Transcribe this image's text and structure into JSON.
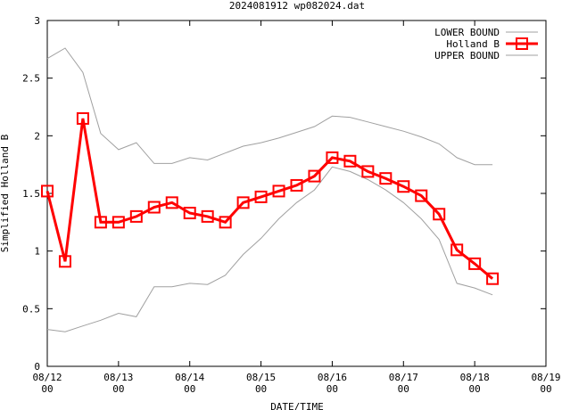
{
  "chart_data": {
    "type": "line",
    "title": "2024081912 wp082024.dat",
    "xlabel": "DATE/TIME",
    "ylabel": "Simplified Holland B",
    "ylim": [
      0,
      3
    ],
    "yticks": [
      "0",
      "0.5",
      "1",
      "1.5",
      "2",
      "2.5",
      "3"
    ],
    "xlim_days": [
      0,
      7
    ],
    "xticks": [
      {
        "top": "08/12",
        "bottom": "00"
      },
      {
        "top": "08/13",
        "bottom": "00"
      },
      {
        "top": "08/14",
        "bottom": "00"
      },
      {
        "top": "08/15",
        "bottom": "00"
      },
      {
        "top": "08/16",
        "bottom": "00"
      },
      {
        "top": "08/17",
        "bottom": "00"
      },
      {
        "top": "08/18",
        "bottom": "00"
      },
      {
        "top": "08/19",
        "bottom": "00"
      }
    ],
    "legend_placement": "top-right",
    "series": [
      {
        "name": "LOWER BOUND",
        "color": "#a0a0a0",
        "x": [
          0,
          0.25,
          0.5,
          0.75,
          1.0,
          1.25,
          1.5,
          1.75,
          2.0,
          2.25,
          2.5,
          2.75,
          3.0,
          3.25,
          3.5,
          3.75,
          4.0,
          4.25,
          4.5,
          4.75,
          5.0,
          5.25,
          5.5,
          5.75,
          6.0,
          6.25
        ],
        "values": [
          0.32,
          0.3,
          0.35,
          0.4,
          0.46,
          0.43,
          0.69,
          0.69,
          0.72,
          0.71,
          0.79,
          0.97,
          1.11,
          1.28,
          1.42,
          1.53,
          1.73,
          1.69,
          1.62,
          1.53,
          1.42,
          1.28,
          1.1,
          0.72,
          0.68,
          0.62
        ]
      },
      {
        "name": "Holland B",
        "color": "#ff0000",
        "x": [
          0,
          0.25,
          0.5,
          0.75,
          1.0,
          1.25,
          1.5,
          1.75,
          2.0,
          2.25,
          2.5,
          2.75,
          3.0,
          3.25,
          3.5,
          3.75,
          4.0,
          4.25,
          4.5,
          4.75,
          5.0,
          5.25,
          5.5,
          5.75,
          6.0,
          6.25
        ],
        "values": [
          1.52,
          0.91,
          2.15,
          1.25,
          1.25,
          1.3,
          1.38,
          1.42,
          1.33,
          1.3,
          1.25,
          1.42,
          1.47,
          1.52,
          1.57,
          1.65,
          1.81,
          1.78,
          1.69,
          1.63,
          1.56,
          1.48,
          1.32,
          1.01,
          0.89,
          0.76
        ]
      },
      {
        "name": "UPPER BOUND",
        "color": "#a0a0a0",
        "x": [
          0,
          0.25,
          0.5,
          0.75,
          1.0,
          1.25,
          1.5,
          1.75,
          2.0,
          2.25,
          2.5,
          2.75,
          3.0,
          3.25,
          3.5,
          3.75,
          4.0,
          4.25,
          4.5,
          4.75,
          5.0,
          5.25,
          5.5,
          5.75,
          6.0,
          6.25
        ],
        "values": [
          2.67,
          2.76,
          2.55,
          2.02,
          1.88,
          1.94,
          1.76,
          1.76,
          1.81,
          1.79,
          1.85,
          1.91,
          1.94,
          1.98,
          2.03,
          2.08,
          2.17,
          2.16,
          2.12,
          2.08,
          2.04,
          1.99,
          1.93,
          1.81,
          1.75,
          1.75
        ]
      }
    ]
  }
}
